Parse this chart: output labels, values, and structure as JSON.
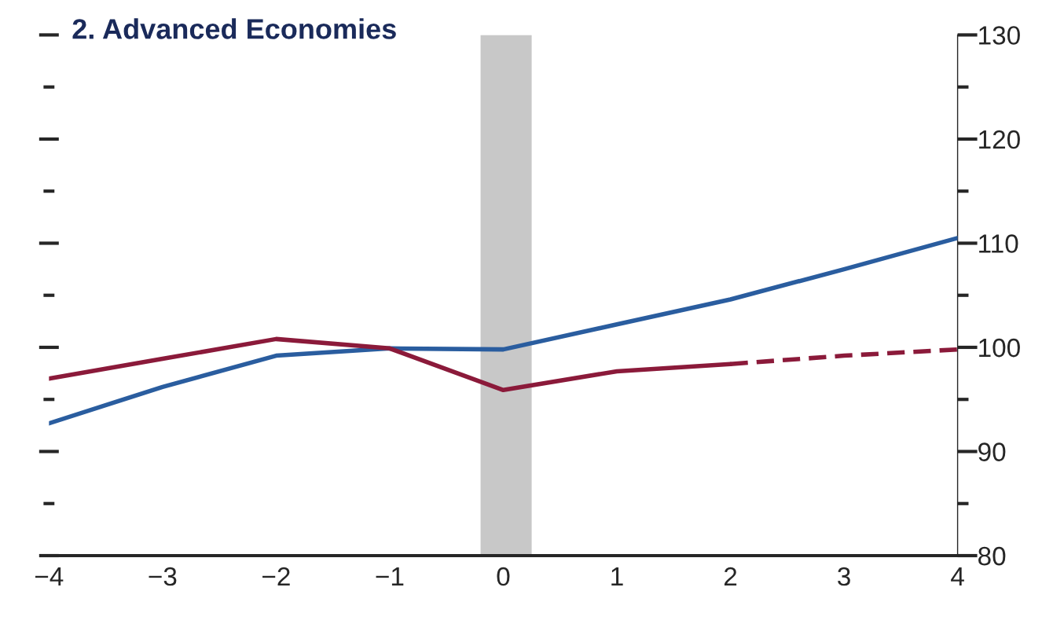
{
  "chart_data": {
    "type": "line",
    "title": "2. Advanced Economies",
    "x": [
      -4,
      -3,
      -2,
      -1,
      0,
      1,
      2,
      3,
      4
    ],
    "series": [
      {
        "color": "#2a5d9f",
        "values": [
          92.7,
          96.2,
          99.2,
          99.9,
          99.8,
          102.2,
          104.6,
          107.5,
          110.5
        ]
      },
      {
        "color": "#8b1a3a",
        "x": [
          -4,
          -3,
          -2,
          -1,
          0,
          1,
          2
        ],
        "values": [
          97.0,
          98.9,
          100.8,
          99.9,
          95.9,
          97.7,
          98.4
        ]
      },
      {
        "color": "#8b1a3a",
        "line_style": "dashed",
        "x": [
          2,
          3,
          4
        ],
        "values": [
          98.4,
          99.2,
          99.8
        ]
      }
    ],
    "bands": [
      {
        "axis": "x",
        "from": -0.2,
        "to": 0.25,
        "color": "#c8c8c8"
      }
    ],
    "xlim": [
      -4,
      4
    ],
    "xticks": [
      {
        "value": -4,
        "label": "−4"
      },
      {
        "value": -3,
        "label": "−3"
      },
      {
        "value": -2,
        "label": "−2"
      },
      {
        "value": -1,
        "label": "−1"
      },
      0,
      1,
      2,
      3,
      4
    ],
    "ylim": [
      80,
      130
    ],
    "yticks": [
      80,
      {
        "value": 85,
        "label": null
      },
      90,
      {
        "value": 95,
        "label": null
      },
      100,
      {
        "value": 105,
        "label": null
      },
      110,
      {
        "value": 115,
        "label": null
      },
      120,
      {
        "value": 125,
        "label": null
      },
      130
    ],
    "grid": false,
    "legend": false
  }
}
